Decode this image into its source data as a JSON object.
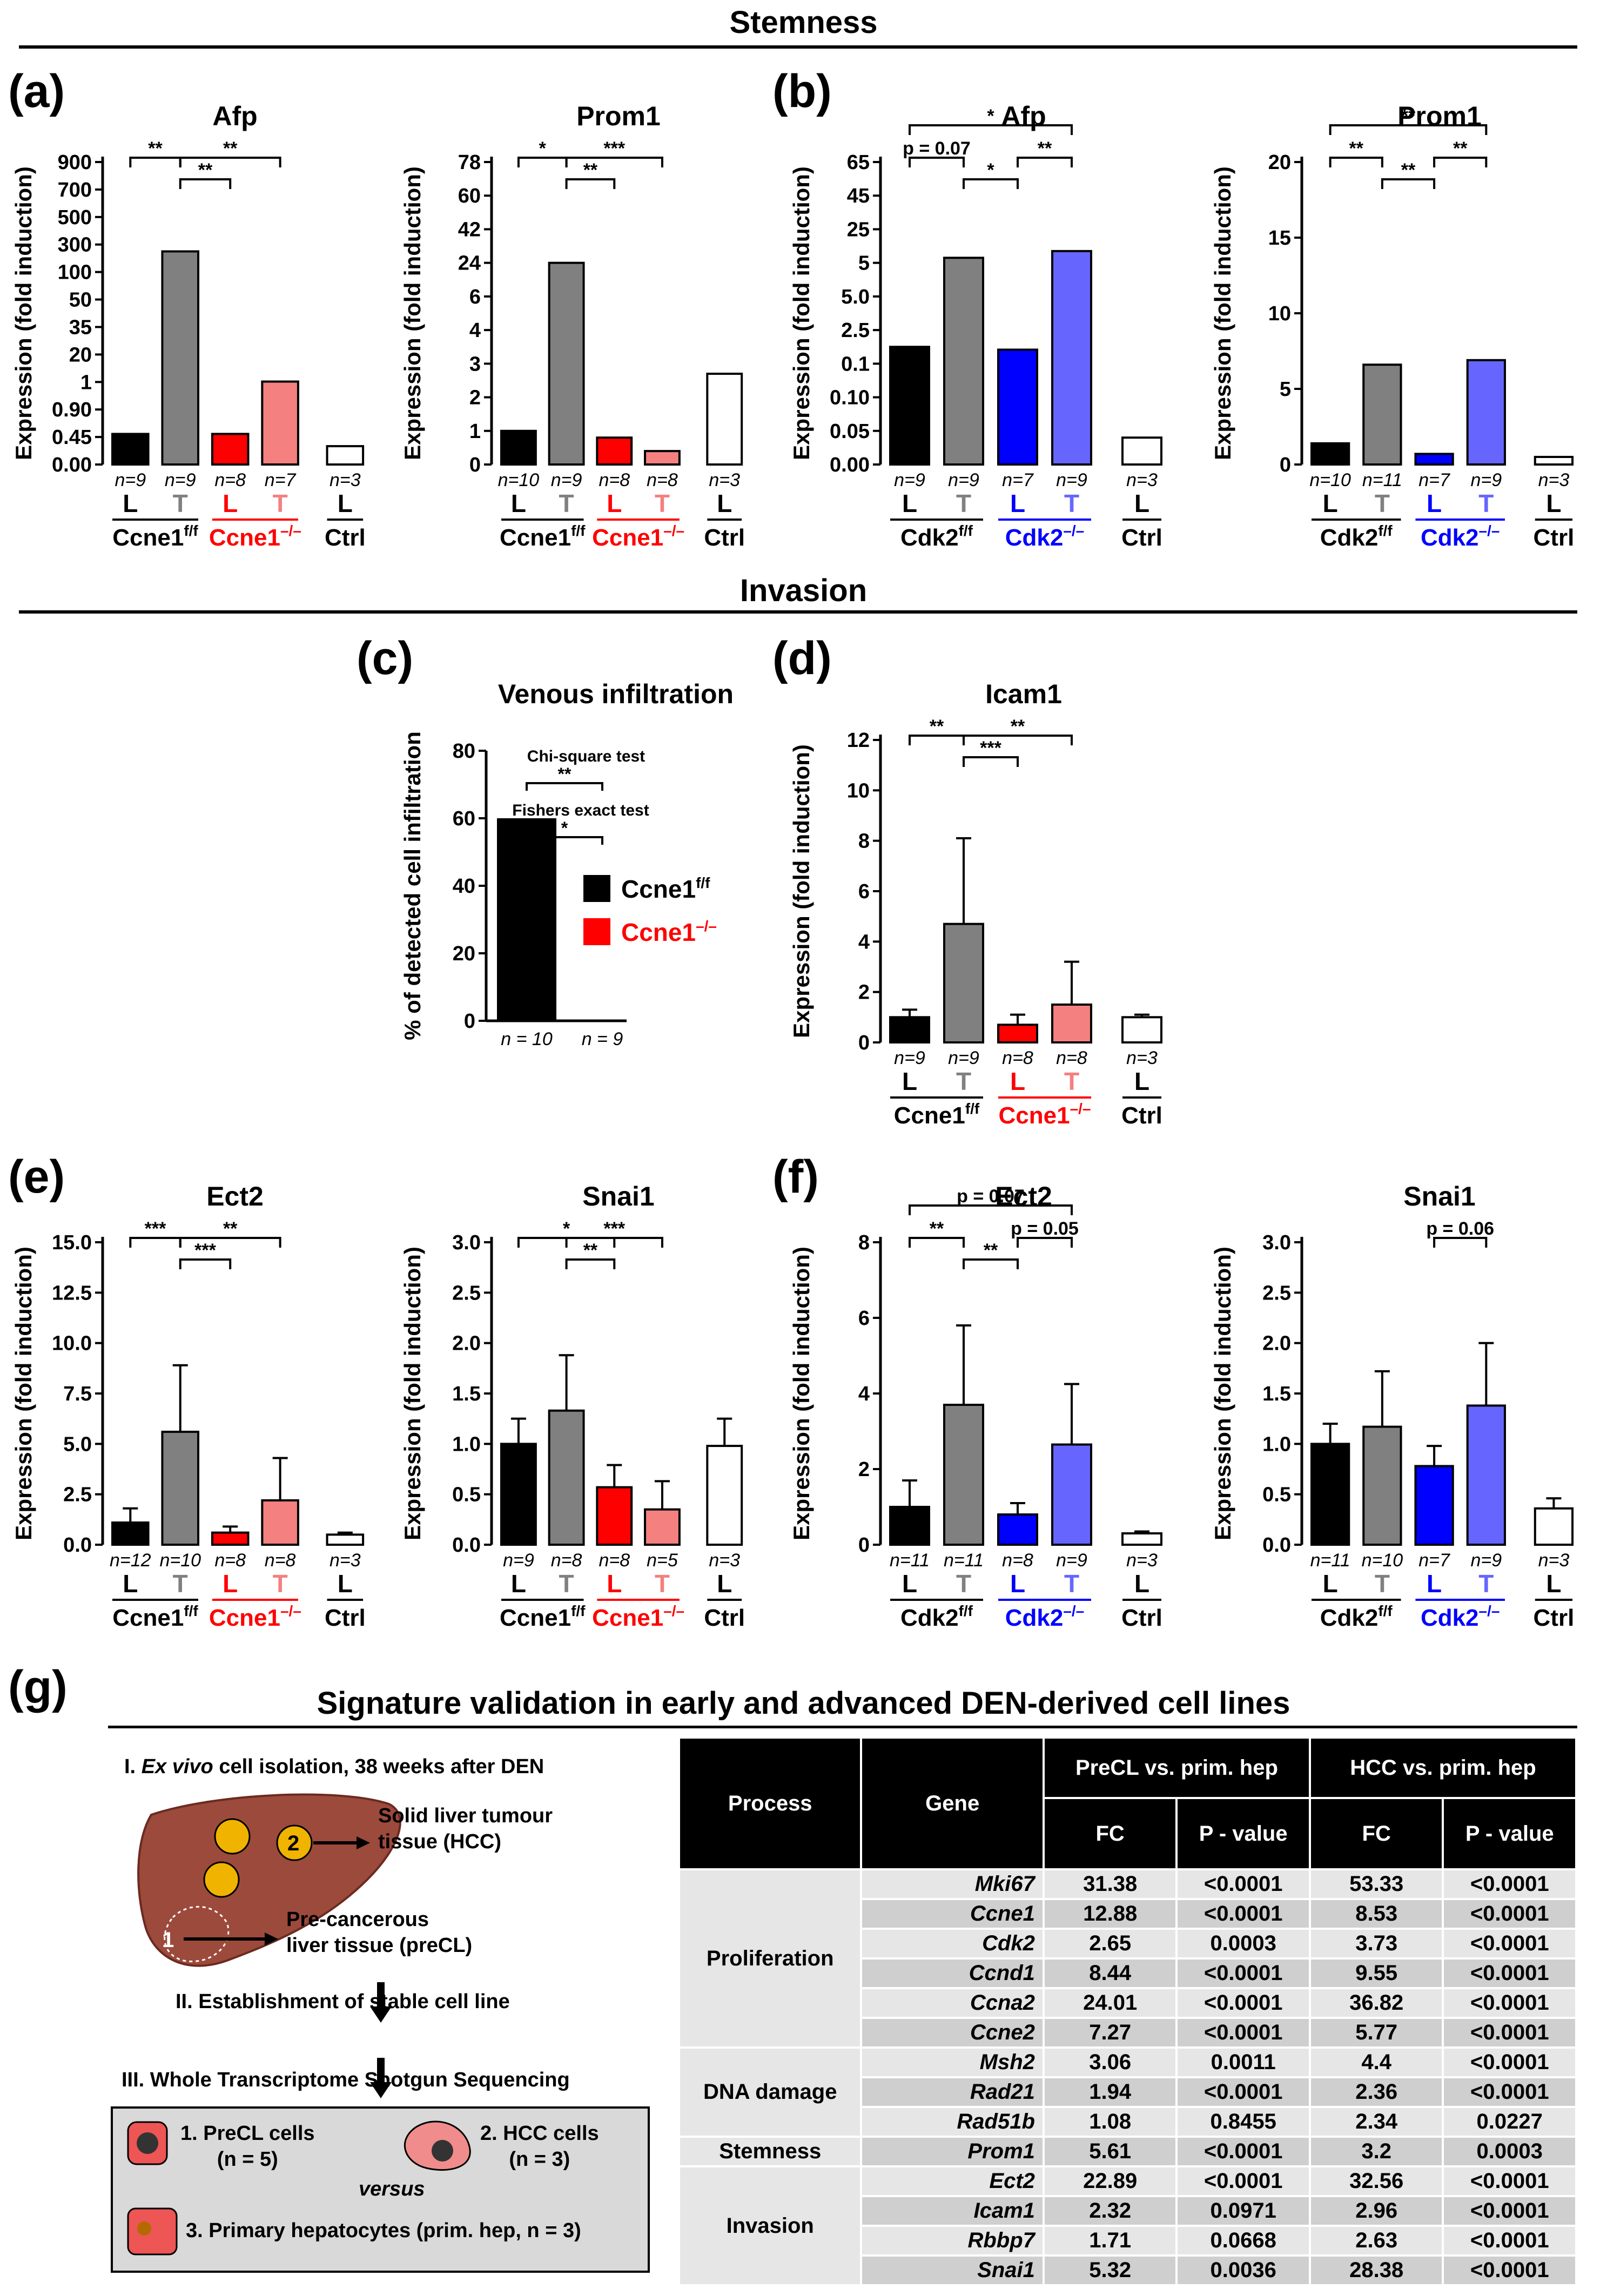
{
  "sections": {
    "stemness": "Stemness",
    "invasion": "Invasion"
  },
  "panel_labels": {
    "a": "(a)",
    "b": "(b)",
    "c": "(c)",
    "d": "(d)",
    "e": "(e)",
    "f": "(f)",
    "g": "(g)"
  },
  "colors": {
    "black": "#000000",
    "grey": "#808080",
    "red": "#ff0000",
    "pink": "#f48080",
    "blue": "#0000ff",
    "lightblue": "#6666ff",
    "white": "#ffffff"
  },
  "ylabel": "Expression (fold induction)",
  "groups": {
    "ccne": {
      "ff": "Ccne1",
      "ff_sup": "f/f",
      "ko": "Ccne1",
      "ko_sup": "–/–",
      "ctrl": "Ctrl"
    },
    "cdk": {
      "ff": "Cdk2",
      "ff_sup": "f/f",
      "ko": "Cdk2",
      "ko_sup": "–/–",
      "ctrl": "Ctrl"
    }
  },
  "chart_data": [
    {
      "id": "a1",
      "type": "bar",
      "title": "Afp",
      "genotype": "ccne",
      "categories": [
        "L",
        "T",
        "L",
        "T",
        "L"
      ],
      "n": [
        "n=9",
        "n=9",
        "n=8",
        "n=7",
        "n=3"
      ],
      "values": [
        0.5,
        250,
        0.5,
        1.3,
        0.3
      ],
      "yticks": [
        "0.00",
        "0.45",
        "0.90",
        "1",
        "20",
        "35",
        "50",
        "100",
        "300",
        "500",
        "700",
        "900"
      ],
      "sig": [
        [
          "**",
          0,
          1
        ],
        [
          "**",
          1,
          2
        ],
        [
          "**",
          1,
          3
        ]
      ]
    },
    {
      "id": "a2",
      "type": "bar",
      "title": "Prom1",
      "genotype": "ccne",
      "categories": [
        "L",
        "T",
        "L",
        "T",
        "L"
      ],
      "n": [
        "n=10",
        "n=9",
        "n=8",
        "n=8",
        "n=3"
      ],
      "values": [
        1.0,
        24,
        0.8,
        0.4,
        2.7
      ],
      "yticks": [
        "0",
        "1",
        "2",
        "3",
        "4",
        "6",
        "24",
        "42",
        "60",
        "78"
      ],
      "sig": [
        [
          "*",
          0,
          1
        ],
        [
          "**",
          1,
          2
        ],
        [
          "***",
          1,
          3
        ]
      ]
    },
    {
      "id": "b1",
      "type": "bar",
      "title": "Afp",
      "genotype": "cdk",
      "categories": [
        "L",
        "T",
        "L",
        "T",
        "L"
      ],
      "n": [
        "n=9",
        "n=9",
        "n=7",
        "n=9",
        "n=3"
      ],
      "values": [
        1.3,
        8,
        1.1,
        12,
        0.04
      ],
      "yticks": [
        "0.00",
        "0.05",
        "0.10",
        "0.1",
        "2.5",
        "5.0",
        "5",
        "25",
        "45",
        "65"
      ],
      "sig": [
        [
          "p = 0.07",
          0,
          1
        ],
        [
          "*",
          1,
          2
        ],
        [
          "**",
          2,
          3
        ],
        [
          "*",
          0,
          3
        ]
      ]
    },
    {
      "id": "b2",
      "type": "bar",
      "title": "Prom1",
      "genotype": "cdk",
      "categories": [
        "L",
        "T",
        "L",
        "T",
        "L"
      ],
      "n": [
        "n=10",
        "n=11",
        "n=7",
        "n=9",
        "n=3"
      ],
      "values": [
        1.4,
        6.6,
        0.7,
        6.9,
        0.5
      ],
      "yticks": [
        "0",
        "5",
        "10",
        "15",
        "20"
      ],
      "ylim": [
        0,
        20
      ],
      "sig": [
        [
          "**",
          0,
          1
        ],
        [
          "**",
          1,
          2
        ],
        [
          "**",
          2,
          3
        ],
        [
          "**",
          0,
          3
        ]
      ]
    },
    {
      "id": "c",
      "type": "bar",
      "title": "Venous infiltration",
      "ylabel": "% of detected cell infiltration",
      "categories": [
        "Ccne1f/f",
        "Ccne1–/–"
      ],
      "n": [
        "n = 10",
        "n = 9"
      ],
      "values": [
        60,
        0
      ],
      "yticks": [
        "0",
        "20",
        "40",
        "60",
        "80"
      ],
      "ylim": [
        0,
        80
      ],
      "tests": [
        "Chi-square test",
        "Fishers exact test"
      ],
      "sig": [
        "**",
        "*"
      ],
      "legend": [
        "Ccne1",
        "Ccne1"
      ]
    },
    {
      "id": "d",
      "type": "bar",
      "title": "Icam1",
      "genotype": "ccne",
      "categories": [
        "L",
        "T",
        "L",
        "T",
        "L"
      ],
      "n": [
        "n=9",
        "n=9",
        "n=8",
        "n=8",
        "n=3"
      ],
      "values": [
        1.0,
        4.7,
        0.7,
        1.5,
        1.0
      ],
      "err": [
        0.3,
        3.4,
        0.4,
        1.7,
        0.1
      ],
      "yticks": [
        "0",
        "2",
        "4",
        "6",
        "8",
        "10",
        "12"
      ],
      "ylim": [
        0,
        12
      ],
      "sig": [
        [
          "**",
          0,
          1
        ],
        [
          "***",
          1,
          2
        ],
        [
          "**",
          1,
          3
        ]
      ]
    },
    {
      "id": "e1",
      "type": "bar",
      "title": "Ect2",
      "genotype": "ccne",
      "categories": [
        "L",
        "T",
        "L",
        "T",
        "L"
      ],
      "n": [
        "n=12",
        "n=10",
        "n=8",
        "n=8",
        "n=3"
      ],
      "values": [
        1.1,
        5.6,
        0.6,
        2.2,
        0.5
      ],
      "err": [
        0.7,
        3.3,
        0.3,
        2.1,
        0.1
      ],
      "yticks": [
        "0.0",
        "2.5",
        "5.0",
        "7.5",
        "10.0",
        "12.5",
        "15.0"
      ],
      "ylim": [
        0,
        15
      ],
      "sig": [
        [
          "***",
          0,
          1
        ],
        [
          "***",
          1,
          2
        ],
        [
          "**",
          1,
          3
        ]
      ]
    },
    {
      "id": "e2",
      "type": "bar",
      "title": "Snai1",
      "genotype": "ccne",
      "categories": [
        "L",
        "T",
        "L",
        "T",
        "L"
      ],
      "n": [
        "n=9",
        "n=8",
        "n=8",
        "n=5",
        "n=3"
      ],
      "values": [
        1.0,
        1.33,
        0.57,
        0.35,
        0.98
      ],
      "err": [
        0.25,
        0.55,
        0.22,
        0.28,
        0.27
      ],
      "yticks": [
        "0.0",
        "0.5",
        "1.0",
        "1.5",
        "2.0",
        "2.5",
        "3.0"
      ],
      "ylim": [
        0,
        3
      ],
      "sig": [
        [
          "*",
          0,
          2
        ],
        [
          "**",
          1,
          2
        ],
        [
          "***",
          1,
          3
        ]
      ]
    },
    {
      "id": "f1",
      "type": "bar",
      "title": "Ect2",
      "genotype": "cdk",
      "categories": [
        "L",
        "T",
        "L",
        "T",
        "L"
      ],
      "n": [
        "n=11",
        "n=11",
        "n=8",
        "n=9",
        "n=3"
      ],
      "values": [
        1.0,
        3.7,
        0.8,
        2.65,
        0.3
      ],
      "err": [
        0.7,
        2.1,
        0.3,
        1.6,
        0.05
      ],
      "yticks": [
        "0",
        "2",
        "4",
        "6",
        "8"
      ],
      "ylim": [
        0,
        8
      ],
      "sig": [
        [
          "**",
          0,
          1
        ],
        [
          "**",
          1,
          2
        ],
        [
          "p = 0.05",
          2,
          3
        ],
        [
          "p = 0.07",
          0,
          3
        ]
      ]
    },
    {
      "id": "f2",
      "type": "bar",
      "title": "Snai1",
      "genotype": "cdk",
      "categories": [
        "L",
        "T",
        "L",
        "T",
        "L"
      ],
      "n": [
        "n=11",
        "n=10",
        "n=7",
        "n=9",
        "n=3"
      ],
      "values": [
        1.0,
        1.17,
        0.78,
        1.38,
        0.36
      ],
      "err": [
        0.2,
        0.55,
        0.2,
        0.62,
        0.1
      ],
      "yticks": [
        "0.0",
        "0.5",
        "1.0",
        "1.5",
        "2.0",
        "2.5",
        "3.0"
      ],
      "ylim": [
        0,
        3
      ],
      "sig": [
        [
          "p = 0.06",
          2,
          3
        ]
      ]
    }
  ],
  "g": {
    "title": "Signature validation in early and advanced DEN-derived cell lines",
    "step1_pre": "I. ",
    "step1_ital": "Ex vivo",
    "step1_post": " cell isolation, 38 weeks after DEN",
    "tumour_label": "Solid liver tumour tissue (HCC)",
    "tumour_l1": "Solid liver tumour",
    "tumour_l2": "tissue (HCC)",
    "precl_l1": "Pre-cancerous",
    "precl_l2": "liver tissue (preCL)",
    "num1": "1",
    "num2": "2",
    "step2": "II. Establishment of stable cell line",
    "step3": "III. Whole Transcriptome Shotgun Sequencing",
    "box1_l1": "1. PreCL cells",
    "box1_l2": "(n = 5)",
    "box2_l1": "2. HCC cells",
    "box2_l2": "(n = 3)",
    "versus": "versus",
    "box3": "3. Primary hepatocytes (prim. hep, n = 3)",
    "table": {
      "h_process": "Process",
      "h_gene": "Gene",
      "h_precl": "PreCL vs. prim. hep",
      "h_hcc": "HCC vs. prim. hep",
      "h_fc": "FC",
      "h_p": "P - value",
      "rows": [
        {
          "process": "Proliferation",
          "gene": "Mki67",
          "fc1": "31.38",
          "p1": "<0.0001",
          "fc2": "53.33",
          "p2": "<0.0001"
        },
        {
          "process": "",
          "gene": "Ccne1",
          "fc1": "12.88",
          "p1": "<0.0001",
          "fc2": "8.53",
          "p2": "<0.0001"
        },
        {
          "process": "",
          "gene": "Cdk2",
          "fc1": "2.65",
          "p1": "0.0003",
          "fc2": "3.73",
          "p2": "<0.0001"
        },
        {
          "process": "",
          "gene": "Ccnd1",
          "fc1": "8.44",
          "p1": "<0.0001",
          "fc2": "9.55",
          "p2": "<0.0001"
        },
        {
          "process": "",
          "gene": "Ccna2",
          "fc1": "24.01",
          "p1": "<0.0001",
          "fc2": "36.82",
          "p2": "<0.0001"
        },
        {
          "process": "",
          "gene": "Ccne2",
          "fc1": "7.27",
          "p1": "<0.0001",
          "fc2": "5.77",
          "p2": "<0.0001"
        },
        {
          "process": "DNA damage",
          "gene": "Msh2",
          "fc1": "3.06",
          "p1": "0.0011",
          "fc2": "4.4",
          "p2": "<0.0001"
        },
        {
          "process": "",
          "gene": "Rad21",
          "fc1": "1.94",
          "p1": "<0.0001",
          "fc2": "2.36",
          "p2": "<0.0001"
        },
        {
          "process": "",
          "gene": "Rad51b",
          "fc1": "1.08",
          "p1": "0.8455",
          "fc2": "2.34",
          "p2": "0.0227"
        },
        {
          "process": "Stemness",
          "gene": "Prom1",
          "fc1": "5.61",
          "p1": "<0.0001",
          "fc2": "3.2",
          "p2": "0.0003"
        },
        {
          "process": "Invasion",
          "gene": "Ect2",
          "fc1": "22.89",
          "p1": "<0.0001",
          "fc2": "32.56",
          "p2": "<0.0001"
        },
        {
          "process": "",
          "gene": "Icam1",
          "fc1": "2.32",
          "p1": "0.0971",
          "fc2": "2.96",
          "p2": "<0.0001"
        },
        {
          "process": "",
          "gene": "Rbbp7",
          "fc1": "1.71",
          "p1": "0.0668",
          "fc2": "2.63",
          "p2": "<0.0001"
        },
        {
          "process": "",
          "gene": "Snai1",
          "fc1": "5.32",
          "p1": "0.0036",
          "fc2": "28.38",
          "p2": "<0.0001"
        }
      ]
    }
  }
}
